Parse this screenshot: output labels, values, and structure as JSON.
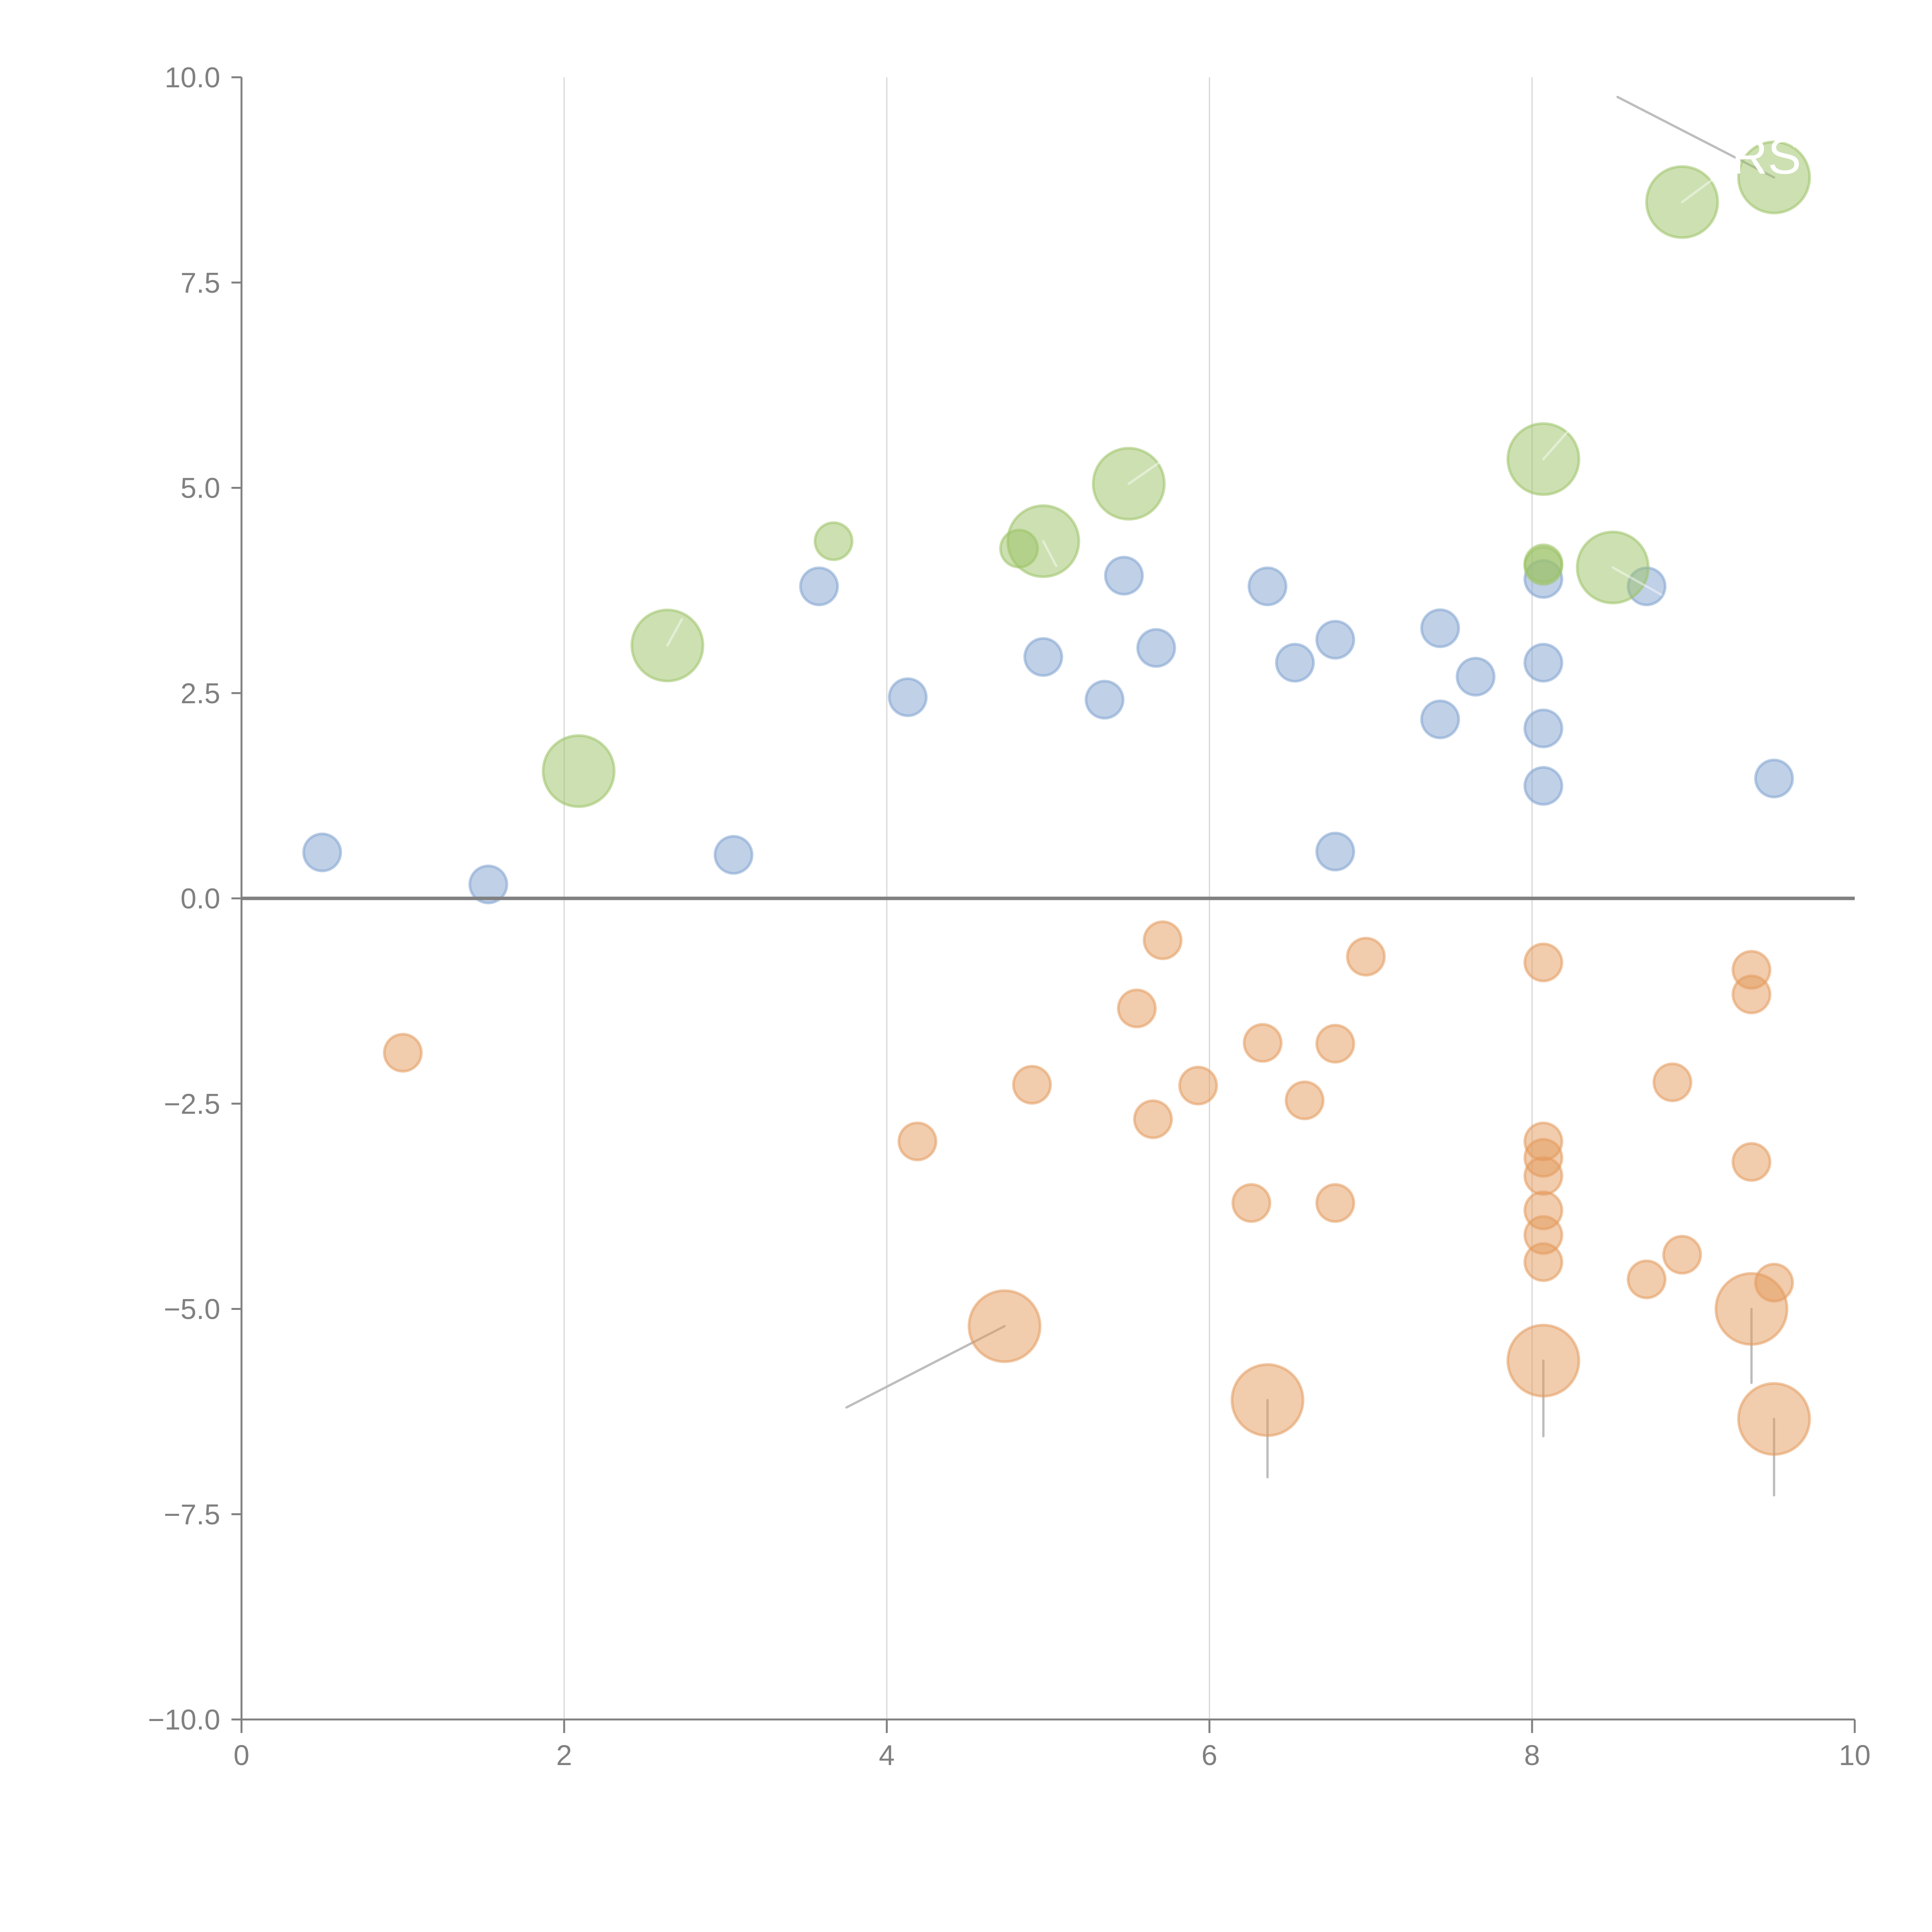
{
  "colors": {
    "positive": "#7fa2d0",
    "negative": "#e39a5c",
    "highlight": "#9cc266",
    "axis": "#808080",
    "grid": "#d6d6d6"
  },
  "chart_data": {
    "type": "scatter",
    "title": "",
    "xlabel": "",
    "ylabel": "",
    "xlim": [
      0,
      10
    ],
    "ylim": [
      -10,
      10
    ],
    "xticks": [
      "0",
      "2",
      "4",
      "6",
      "8",
      "10"
    ],
    "xtick_values": [
      0,
      2,
      4,
      6,
      8,
      10
    ],
    "yticks": [
      "10.0",
      "7.5",
      "5.0",
      "2.5",
      "0.0",
      "−2.5",
      "−5.0",
      "−7.5",
      "−10.0"
    ],
    "ytick_values": [
      10,
      7.5,
      5,
      2.5,
      0,
      -2.5,
      -5,
      -7.5,
      -10
    ],
    "grid": "vertical",
    "reference_line_y": 0,
    "legend": "none",
    "series": [
      {
        "name": "blue",
        "color_key": "positive",
        "size": "small",
        "points": [
          [
            0.5,
            0.56
          ],
          [
            1.53,
            0.17
          ],
          [
            3.05,
            0.53
          ],
          [
            3.58,
            3.8
          ],
          [
            4.13,
            2.45
          ],
          [
            4.97,
            2.94
          ],
          [
            5.35,
            2.42
          ],
          [
            5.47,
            3.93
          ],
          [
            5.67,
            3.05
          ],
          [
            6.36,
            3.8
          ],
          [
            6.53,
            2.87
          ],
          [
            6.78,
            3.15
          ],
          [
            6.78,
            0.57
          ],
          [
            7.43,
            3.29
          ],
          [
            7.43,
            2.18
          ],
          [
            7.65,
            2.7
          ],
          [
            8.07,
            3.89
          ],
          [
            8.07,
            2.87
          ],
          [
            8.07,
            2.07
          ],
          [
            8.07,
            1.37
          ],
          [
            8.71,
            3.8
          ],
          [
            9.5,
            1.46
          ]
        ]
      },
      {
        "name": "orange",
        "color_key": "negative",
        "size": "small",
        "points": [
          [
            1.0,
            -1.88
          ],
          [
            4.19,
            -2.96
          ],
          [
            4.9,
            -2.27
          ],
          [
            5.55,
            -1.34
          ],
          [
            5.71,
            -0.51
          ],
          [
            5.65,
            -2.69
          ],
          [
            5.93,
            -2.28
          ],
          [
            6.26,
            -3.71
          ],
          [
            6.33,
            -1.76
          ],
          [
            6.59,
            -2.46
          ],
          [
            6.78,
            -1.77
          ],
          [
            6.78,
            -3.71
          ],
          [
            6.97,
            -0.71
          ],
          [
            8.07,
            -0.78
          ],
          [
            8.07,
            -2.96
          ],
          [
            8.07,
            -3.16
          ],
          [
            8.07,
            -3.38
          ],
          [
            8.07,
            -3.8
          ],
          [
            8.07,
            -4.1
          ],
          [
            8.07,
            -4.43
          ],
          [
            8.71,
            -4.64
          ],
          [
            8.87,
            -2.24
          ],
          [
            8.93,
            -4.34
          ],
          [
            9.36,
            -0.87
          ],
          [
            9.36,
            -1.17
          ],
          [
            9.36,
            -3.21
          ],
          [
            9.5,
            -4.68
          ]
        ]
      },
      {
        "name": "orange-large",
        "color_key": "negative",
        "size": "large",
        "points": [
          [
            4.73,
            -5.21
          ],
          [
            6.36,
            -6.11
          ],
          [
            8.07,
            -5.63
          ],
          [
            9.36,
            -5.0
          ],
          [
            9.5,
            -6.34
          ]
        ]
      },
      {
        "name": "green",
        "color_key": "highlight",
        "size": "small",
        "points": [
          [
            3.67,
            4.35
          ],
          [
            4.82,
            4.26
          ],
          [
            8.07,
            4.05
          ],
          [
            8.07,
            4.08
          ]
        ]
      },
      {
        "name": "green-large",
        "color_key": "highlight",
        "size": "large",
        "points": [
          [
            2.09,
            1.55
          ],
          [
            2.64,
            3.08
          ],
          [
            4.97,
            4.35
          ],
          [
            5.5,
            5.05
          ],
          [
            8.07,
            5.35
          ],
          [
            8.5,
            4.03
          ],
          [
            8.93,
            8.48
          ],
          [
            9.5,
            8.78
          ]
        ]
      }
    ],
    "annotations": [
      {
        "text": "RS",
        "color": "#ffffff",
        "near": [
          9.5,
          8.78
        ]
      }
    ]
  }
}
